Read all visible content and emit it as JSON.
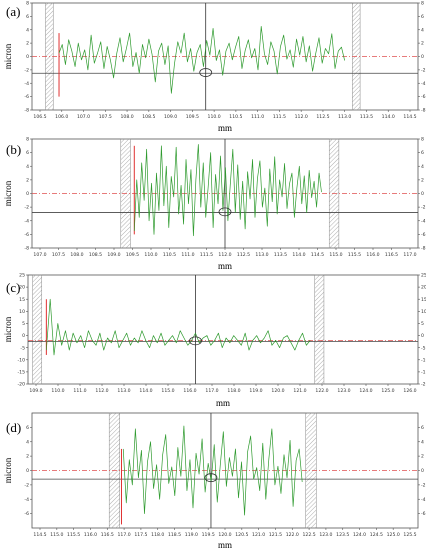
{
  "chart_data": [
    {
      "type": "line",
      "panel_label": "(a)",
      "ylabel": "micron",
      "xlabel": "mm",
      "xlim": [
        106.5,
        116.5
      ],
      "xticks": [
        "106.5",
        "106.0",
        "107.0",
        "107.5",
        "108.0",
        "108.5",
        "109.0",
        "109.5",
        "110.0",
        "110.5",
        "111.0",
        "111.5",
        "112.0",
        "112.5",
        "113.0",
        "113.5",
        "114.0",
        "114.5"
      ],
      "ylim": [
        -8,
        8
      ],
      "yticks": [
        8,
        6,
        4,
        2,
        0,
        -2,
        -4,
        -6,
        -8
      ],
      "ytick_labels": [
        "8",
        "6",
        "4",
        "2",
        "0",
        "-2",
        "-4",
        "-6",
        "-8"
      ],
      "hatch_left": [
        106.85,
        107.05
      ],
      "hatch_right": [
        114.8,
        115.0
      ],
      "red_line_x": 107.2,
      "red_line_range": [
        -6,
        3.5
      ],
      "ref_dashed_y": 0,
      "ref_solid_y": -2.5,
      "cursor_x": 111.0,
      "ellipse": {
        "x": 111.0,
        "y": -2.4
      },
      "series": [
        {
          "x0": 107.2,
          "x1": 114.6,
          "values": [
            0.5,
            1.8,
            -1.2,
            2.5,
            0.8,
            -1.5,
            2.0,
            -0.5,
            1.0,
            -2.0,
            3.2,
            -1.0,
            0.5,
            2.2,
            -1.8,
            1.5,
            -0.5,
            -3.2,
            0.5,
            2.8,
            -0.8,
            1.2,
            3.5,
            -1.5,
            0.6,
            -2.5,
            1.8,
            -0.2,
            2.6,
            0.3,
            -3.8,
            0.8,
            2.0,
            -1.2,
            1.6,
            -5.5,
            -1.0,
            2.2,
            0.5,
            3.5,
            -0.8,
            1.2,
            -2.2,
            0.6,
            1.8,
            -1.5,
            2.4,
            0.2,
            4.2,
            -0.6,
            1.0,
            -2.8,
            0.8,
            2.0,
            -0.5,
            1.4,
            3.0,
            -1.8,
            0.9,
            2.5,
            -0.2,
            1.2,
            -2.0,
            4.5,
            0.4,
            -1.2,
            2.2,
            0.8,
            -2.6,
            1.5,
            3.2,
            -0.4,
            1.0,
            -1.6,
            2.6,
            0.2,
            3.0,
            -0.8,
            1.6,
            -2.2,
            0.5,
            2.8,
            -1.0,
            1.2,
            0.4,
            3.4,
            -1.8,
            0.8,
            1.4,
            -0.6
          ]
        }
      ]
    },
    {
      "type": "line",
      "panel_label": "(b)",
      "ylabel": "micron",
      "xlabel": "mm",
      "xlim": [
        107.0,
        117.0
      ],
      "xticks": [
        "107.0",
        "107.5",
        "108.0",
        "108.5",
        "109.0",
        "109.5",
        "110.0",
        "110.5",
        "111.0",
        "111.5",
        "112.0",
        "112.5",
        "113.0",
        "113.5",
        "114.0",
        "114.5",
        "115.0",
        "115.5",
        "116.0",
        "116.5",
        "117.0"
      ],
      "ylim": [
        -8,
        8
      ],
      "yticks": [
        8,
        6,
        4,
        2,
        0,
        -2,
        -4,
        -6,
        -8
      ],
      "ytick_labels": [
        "8",
        "6",
        "4",
        "2",
        "0",
        "-2",
        "-4",
        "-6",
        "-8"
      ],
      "hatch_left": [
        109.3,
        109.55
      ],
      "hatch_right": [
        114.7,
        114.95
      ],
      "red_line_x": 109.65,
      "red_line_range": [
        -6,
        7
      ],
      "ref_dashed_y": 0,
      "ref_solid_y": -2.8,
      "cursor_x": 112.0,
      "ellipse": {
        "x": 112.0,
        "y": -2.7
      },
      "series": [
        {
          "x0": 109.65,
          "x1": 114.5,
          "values": [
            -5.5,
            2.0,
            -3.5,
            4.5,
            -1.0,
            6.5,
            -4.0,
            1.5,
            -6.0,
            3.0,
            -2.5,
            7.0,
            -1.8,
            4.0,
            -5.0,
            2.5,
            -0.5,
            6.8,
            -3.0,
            1.2,
            -4.5,
            5.0,
            -1.5,
            3.5,
            -6.2,
            2.0,
            7.2,
            -2.0,
            4.5,
            -3.5,
            1.0,
            6.0,
            -5.0,
            2.8,
            -1.5,
            5.5,
            -2.5,
            3.8,
            -4.0,
            1.5,
            6.5,
            -2.8,
            4.2,
            -3.8,
            1.8,
            -5.2,
            3.2,
            -0.8,
            5.0,
            -3.5,
            2.2,
            4.8,
            -2.0,
            0.8,
            -4.8,
            3.6,
            -1.2,
            5.4,
            -3.0,
            2.0,
            -0.5,
            4.4,
            -2.2,
            1.4,
            3.0,
            -3.5,
            0.8,
            4.0,
            -1.5,
            2.6,
            -2.8,
            3.4,
            -0.6,
            1.8,
            -2.0,
            3.0,
            0.2
          ]
        }
      ]
    },
    {
      "type": "line",
      "panel_label": "(c)",
      "ylabel": "micron",
      "xlabel": "mm",
      "xlim": [
        109.0,
        126.0
      ],
      "xticks": [
        "109.0",
        "110.0",
        "111.0",
        "112.0",
        "113.0",
        "114.0",
        "115.0",
        "116.0",
        "117.0",
        "118.0",
        "119.0",
        "120.0",
        "121.0",
        "122.0",
        "123.0",
        "124.0",
        "125.0",
        "126.0"
      ],
      "ylim": [
        -20,
        25
      ],
      "yticks": [
        25,
        20,
        15,
        10,
        5,
        0,
        -5,
        -10,
        -15,
        -20
      ],
      "ytick_labels": [
        "25",
        "20",
        "15",
        "10",
        "5",
        "0",
        "-5",
        "-10",
        "-15",
        "-20"
      ],
      "hatch_left": [
        109.2,
        109.6
      ],
      "hatch_right": [
        121.5,
        121.9
      ],
      "red_line_x": 109.8,
      "red_line_range": [
        -8,
        15
      ],
      "ref_dashed_y": -2,
      "ref_solid_y": -2.5,
      "cursor_x": 116.3,
      "ellipse": {
        "x": 116.3,
        "y": -2.2
      },
      "series": [
        {
          "x0": 109.8,
          "x1": 121.3,
          "values": [
            -6,
            15,
            -8,
            5,
            -4,
            2,
            -6,
            1,
            -3,
            0,
            -5,
            2,
            -2,
            -4,
            1,
            -6,
            -1,
            -3,
            2,
            -5,
            -2,
            1,
            -4,
            -1,
            -3,
            2,
            -2,
            -5,
            0,
            -3,
            1,
            -4,
            -2,
            0,
            -3,
            2,
            -1,
            -4,
            -2,
            1,
            -3,
            -1,
            0,
            -4,
            -2,
            1,
            -5,
            -1,
            -3,
            0,
            -2,
            -4,
            1,
            -6,
            -2,
            0,
            -3,
            -1,
            2,
            -4,
            -2,
            -5,
            -1,
            0,
            -3,
            -6,
            -2,
            1,
            -4,
            -2
          ]
        }
      ]
    },
    {
      "type": "line",
      "panel_label": "(d)",
      "ylabel": "micron",
      "xlabel": "mm",
      "xlim": [
        114.5,
        125.5
      ],
      "xticks": [
        "114.5",
        "115.0",
        "115.5",
        "116.0",
        "116.5",
        "117.0",
        "117.5",
        "118.0",
        "118.5",
        "119.0",
        "119.5",
        "120.0",
        "120.5",
        "121.0",
        "121.5",
        "122.0",
        "122.5",
        "123.0",
        "123.5",
        "124.0",
        "124.5",
        "125.0",
        "125.5"
      ],
      "ylim": [
        -8,
        8
      ],
      "yticks": [
        6,
        4,
        2,
        0,
        -2,
        -4,
        -6
      ],
      "ytick_labels": [
        "6",
        "4",
        "2",
        "0",
        "-2",
        "-4",
        "-6"
      ],
      "hatch_left": [
        116.7,
        117.0
      ],
      "hatch_right": [
        122.3,
        122.6
      ],
      "red_line_x": 117.05,
      "red_line_range": [
        -7.5,
        3
      ],
      "ref_dashed_y": 0,
      "ref_solid_y": -1.2,
      "cursor_x": 119.6,
      "ellipse": {
        "x": 119.6,
        "y": -1.0
      },
      "series": [
        {
          "x0": 117.1,
          "x1": 122.2,
          "values": [
            3.0,
            -4.5,
            1.5,
            -2.0,
            5.8,
            -1.0,
            2.8,
            -6.0,
            1.2,
            4.0,
            -2.5,
            0.8,
            -4.0,
            2.2,
            5.0,
            -1.8,
            0.5,
            -3.5,
            3.2,
            -0.8,
            6.2,
            -2.8,
            1.5,
            -5.2,
            2.4,
            -0.5,
            4.4,
            -3.0,
            1.0,
            -1.5,
            3.6,
            -4.4,
            0.8,
            5.4,
            -2.2,
            1.8,
            -0.8,
            3.0,
            -3.8,
            1.2,
            -6.2,
            2.6,
            4.8,
            -1.2,
            0.4,
            -2.8,
            3.8,
            -4.0,
            1.6,
            5.8,
            -2.0,
            0.6,
            -3.2,
            2.2,
            -1.0,
            4.2,
            -5.0,
            1.4,
            3.0,
            -1.6
          ]
        }
      ]
    }
  ]
}
